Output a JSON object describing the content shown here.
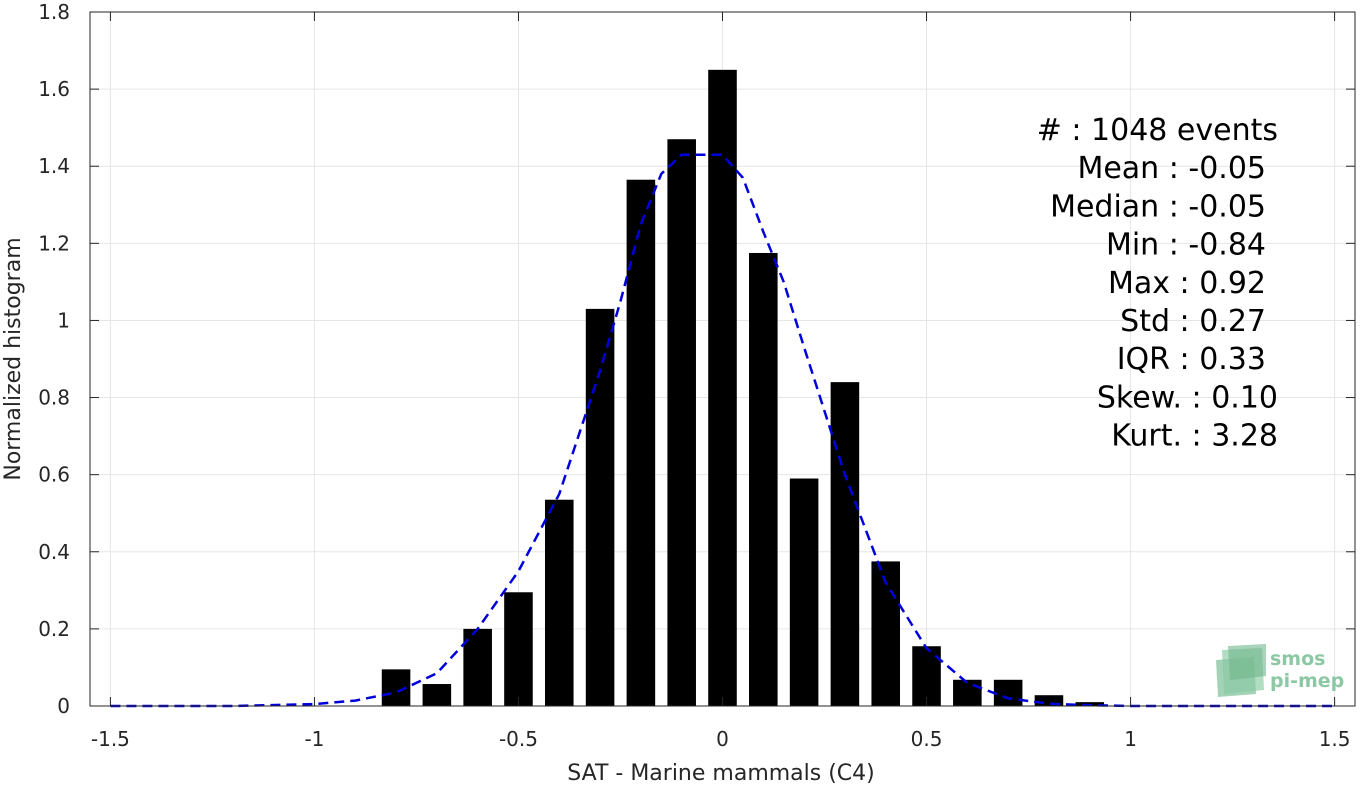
{
  "chart_data": {
    "type": "bar",
    "xlabel": "SAT - Marine mammals (C4)",
    "ylabel": "Normalized histogram",
    "xlim": [
      -1.55,
      1.55
    ],
    "ylim": [
      0,
      1.8
    ],
    "grid": true,
    "x_ticks": [
      -1.5,
      -1,
      -0.5,
      0,
      0.5,
      1,
      1.5
    ],
    "x_tick_labels": [
      "-1.5",
      "-1",
      "-0.5",
      "0",
      "0.5",
      "1",
      "1.5"
    ],
    "y_ticks": [
      0,
      0.2,
      0.4,
      0.6,
      0.8,
      1,
      1.2,
      1.4,
      1.6,
      1.8
    ],
    "y_tick_labels": [
      "0",
      "0.2",
      "0.4",
      "0.6",
      "0.8",
      "1",
      "1.2",
      "1.4",
      "1.6",
      "1.8"
    ],
    "bar_width": 0.07,
    "bars": {
      "x": [
        -0.8,
        -0.7,
        -0.6,
        -0.5,
        -0.4,
        -0.3,
        -0.2,
        -0.1,
        0.0,
        0.1,
        0.2,
        0.3,
        0.4,
        0.5,
        0.6,
        0.7,
        0.8,
        0.9
      ],
      "values": [
        0.095,
        0.057,
        0.2,
        0.295,
        0.535,
        1.03,
        1.365,
        1.47,
        1.65,
        1.175,
        0.59,
        0.84,
        0.375,
        0.155,
        0.068,
        0.068,
        0.028,
        0.01
      ]
    },
    "fit": {
      "style": "dashed",
      "color": "#0000dd",
      "x": [
        -1.5,
        -1.2,
        -1.0,
        -0.9,
        -0.8,
        -0.7,
        -0.6,
        -0.5,
        -0.4,
        -0.3,
        -0.25,
        -0.2,
        -0.15,
        -0.1,
        -0.05,
        0.0,
        0.05,
        0.1,
        0.15,
        0.2,
        0.3,
        0.4,
        0.5,
        0.6,
        0.7,
        0.8,
        0.9,
        1.0,
        1.2,
        1.5
      ],
      "y": [
        0.0,
        0.0,
        0.005,
        0.014,
        0.035,
        0.085,
        0.2,
        0.35,
        0.55,
        0.87,
        1.05,
        1.25,
        1.38,
        1.43,
        1.43,
        1.43,
        1.37,
        1.23,
        1.1,
        0.93,
        0.6,
        0.32,
        0.15,
        0.06,
        0.02,
        0.006,
        0.002,
        0.0,
        0.0,
        0.0
      ]
    },
    "bar_color": "#000000",
    "grid_color": "#e6e6e6"
  },
  "stats": [
    "#  : 1048 events",
    "Mean : -0.05",
    "Median : -0.05",
    "Min : -0.84",
    "Max : 0.92",
    "Std : 0.27",
    "IQR : 0.33",
    "Skew. : 0.10",
    "Kurt. : 3.28"
  ],
  "logo": {
    "line1": "smos",
    "line2": "pi-mep",
    "color": "#8cc8a4"
  }
}
